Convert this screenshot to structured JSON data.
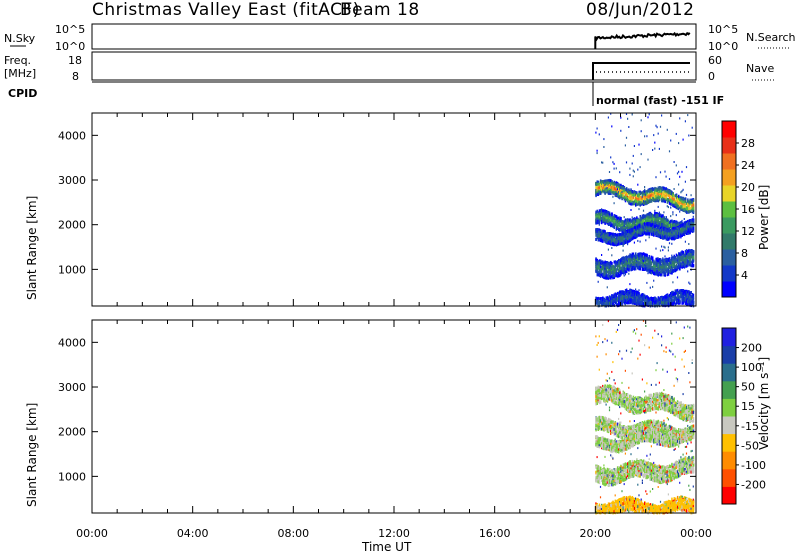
{
  "header": {
    "title": "Christmas Valley East (fitACF)",
    "beam": "Beam 18",
    "date": "08/Jun/2012"
  },
  "top_panels": {
    "nsky_label": "N.Sky",
    "nsky_ticks_left": [
      "10^5",
      "10^0"
    ],
    "nsky_ticks_right": [
      "10^5",
      "10^0"
    ],
    "nsearch_label": "N.Search",
    "freq_label_1": "Freq.",
    "freq_label_2": "[MHz]",
    "freq_ticks_left": [
      "18",
      "8"
    ],
    "nave_ticks_right": [
      "60",
      "0"
    ],
    "nave_label": "Nave",
    "cpid_label": "CPID",
    "cpid_value": "normal (fast) -151 IF"
  },
  "colors": {
    "power_scale": [
      "#0000ff",
      "#1238c8",
      "#2a5fa0",
      "#317a6a",
      "#3a9a60",
      "#5cbf40",
      "#e8d428",
      "#f4a020",
      "#f07020",
      "#e83018",
      "#ff0000"
    ],
    "velocity_scale": [
      "#ff0000",
      "#ff5000",
      "#ff8c00",
      "#ffc000",
      "#c8c8c0",
      "#7ecf40",
      "#44a050",
      "#2a6e8c",
      "#1a3ea8",
      "#2020e0"
    ]
  },
  "chart_data": [
    {
      "type": "heatmap",
      "name": "power",
      "xlabel": "Time UT",
      "ylabel": "Slant Range [km]",
      "xlim": [
        0,
        24
      ],
      "ylim": [
        180,
        4500
      ],
      "x_ticks": [
        "00:00",
        "04:00",
        "08:00",
        "12:00",
        "16:00",
        "20:00",
        "00:00"
      ],
      "y_ticks": [
        1000,
        2000,
        3000,
        4000
      ],
      "colorbar": {
        "label": "Power [dB]",
        "ticks": [
          "28",
          "24",
          "20",
          "16",
          "12",
          "8",
          "4"
        ],
        "range": [
          0,
          30
        ]
      },
      "data_start_hour": 20,
      "bands": [
        {
          "center_km": 2800,
          "slope_km_per_hr": -80,
          "width_km": 150,
          "value_db": 20
        },
        {
          "center_km": 2100,
          "slope_km_per_hr": -30,
          "width_km": 140,
          "value_db": 12
        },
        {
          "center_km": 1700,
          "slope_km_per_hr": 60,
          "width_km": 120,
          "value_db": 8
        },
        {
          "center_km": 1050,
          "slope_km_per_hr": 30,
          "width_km": 180,
          "value_db": 9
        },
        {
          "center_km": 300,
          "slope_km_per_hr": 0,
          "width_km": 150,
          "value_db": 6
        }
      ]
    },
    {
      "type": "heatmap",
      "name": "velocity",
      "xlabel": "Time UT",
      "ylabel": "Slant Range [km]",
      "xlim": [
        0,
        24
      ],
      "ylim": [
        180,
        4500
      ],
      "x_ticks": [
        "00:00",
        "04:00",
        "08:00",
        "12:00",
        "16:00",
        "20:00",
        "00:00"
      ],
      "y_ticks": [
        1000,
        2000,
        3000,
        4000
      ],
      "colorbar": {
        "label": "Velocity [m s⁻¹]",
        "ticks": [
          "200",
          "100",
          "50",
          "15",
          "-15",
          "-50",
          "-100",
          "-200"
        ],
        "range": [
          -250,
          250
        ]
      },
      "data_start_hour": 20,
      "bands": [
        {
          "center_km": 2800,
          "slope_km_per_hr": -80,
          "width_km": 180,
          "value_ms": 0
        },
        {
          "center_km": 2100,
          "slope_km_per_hr": -30,
          "width_km": 140,
          "value_ms": 0
        },
        {
          "center_km": 1700,
          "slope_km_per_hr": 60,
          "width_km": 120,
          "value_ms": 0
        },
        {
          "center_km": 1050,
          "slope_km_per_hr": 30,
          "width_km": 180,
          "value_ms": 0
        },
        {
          "center_km": 300,
          "slope_km_per_hr": 0,
          "width_km": 150,
          "value_ms": -60
        }
      ]
    }
  ]
}
